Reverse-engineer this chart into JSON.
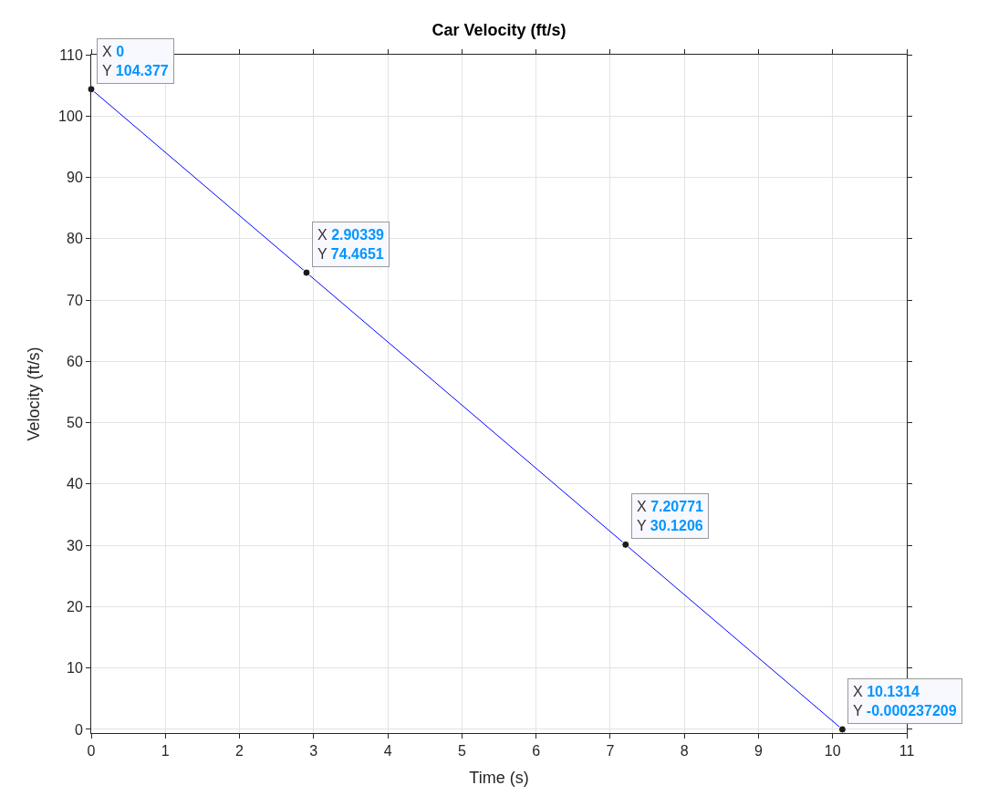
{
  "chart_data": {
    "type": "line",
    "title": "Car Velocity (ft/s)",
    "xlabel": "Time (s)",
    "ylabel": "Velocity (ft/s)",
    "x": [
      0,
      2.90339,
      7.20771,
      10.1314
    ],
    "series": [
      {
        "color": "#0000ff",
        "values": [
          104.377,
          74.4651,
          30.1206,
          -0.000237209
        ]
      }
    ],
    "xlim": [
      0,
      11
    ],
    "xticks": [
      0,
      1,
      2,
      3,
      4,
      5,
      6,
      7,
      8,
      9,
      10,
      11
    ],
    "ylim": [
      -0.6,
      110
    ],
    "yticks": [
      0,
      10,
      20,
      30,
      40,
      50,
      60,
      70,
      80,
      90,
      100,
      110
    ],
    "grid": true,
    "marker": "circle",
    "line_style": "solid",
    "annotations": [
      {
        "text": "X 0\nY 104.377",
        "x": 0,
        "y": 104.377
      },
      {
        "text": "X 2.90339\nY 74.4651",
        "x": 2.90339,
        "y": 74.4651
      },
      {
        "text": "X 7.20771\nY 30.1206",
        "x": 7.20771,
        "y": 30.1206
      },
      {
        "text": "X 10.1314\nY -0.000237209",
        "x": 10.1314,
        "y": -0.000237209
      }
    ]
  }
}
